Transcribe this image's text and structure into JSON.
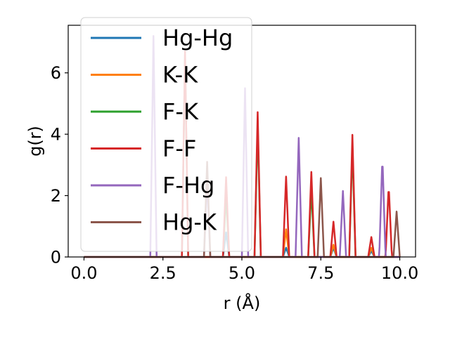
{
  "chart_data": {
    "type": "line",
    "xlabel": "r (Å)",
    "ylabel": "g(r)",
    "xlim": [
      -0.5,
      10.5
    ],
    "ylim": [
      0,
      7.55
    ],
    "xticks": [
      0.0,
      2.5,
      5.0,
      7.5,
      10.0
    ],
    "xtick_labels": [
      "0.0",
      "2.5",
      "5.0",
      "7.5",
      "10.0"
    ],
    "yticks": [
      0,
      2,
      4,
      6
    ],
    "ytick_labels": [
      "0",
      "2",
      "4",
      "6"
    ],
    "grid": false,
    "legend": {
      "placement": "upper-left"
    },
    "peak_halfwidth": 0.1,
    "series": [
      {
        "name": "Hg-Hg",
        "color": "#1f77b4",
        "peaks": [
          [
            4.5,
            0.8
          ],
          [
            6.4,
            0.3
          ],
          [
            7.9,
            0.3
          ],
          [
            9.1,
            0.2
          ]
        ]
      },
      {
        "name": "K-K",
        "color": "#ff7f0e",
        "peaks": [
          [
            6.4,
            0.9
          ],
          [
            7.9,
            0.4
          ],
          [
            9.1,
            0.3
          ]
        ]
      },
      {
        "name": "F-K",
        "color": "#2ca02c",
        "peaks": [
          [
            3.2,
            6.6
          ],
          [
            4.5,
            2.0
          ],
          [
            5.5,
            4.3
          ],
          [
            7.2,
            2.2
          ],
          [
            8.5,
            3.6
          ]
        ]
      },
      {
        "name": "F-F",
        "color": "#d62728",
        "peaks": [
          [
            3.2,
            6.7
          ],
          [
            4.5,
            2.6
          ],
          [
            5.5,
            4.72
          ],
          [
            6.4,
            2.62
          ],
          [
            7.2,
            2.77
          ],
          [
            7.9,
            1.15
          ],
          [
            8.5,
            3.98
          ],
          [
            9.1,
            0.65
          ],
          [
            9.65,
            2.35
          ]
        ]
      },
      {
        "name": "F-Hg",
        "color": "#9467bd",
        "peaks": [
          [
            2.2,
            7.2
          ],
          [
            3.9,
            2.5
          ],
          [
            5.1,
            5.5
          ],
          [
            6.8,
            3.88
          ],
          [
            8.2,
            2.15
          ],
          [
            9.45,
            3.27
          ]
        ]
      },
      {
        "name": "Hg-K",
        "color": "#8c564b",
        "peaks": [
          [
            3.9,
            3.1
          ],
          [
            7.5,
            2.57
          ],
          [
            9.9,
            1.48
          ]
        ]
      }
    ]
  }
}
